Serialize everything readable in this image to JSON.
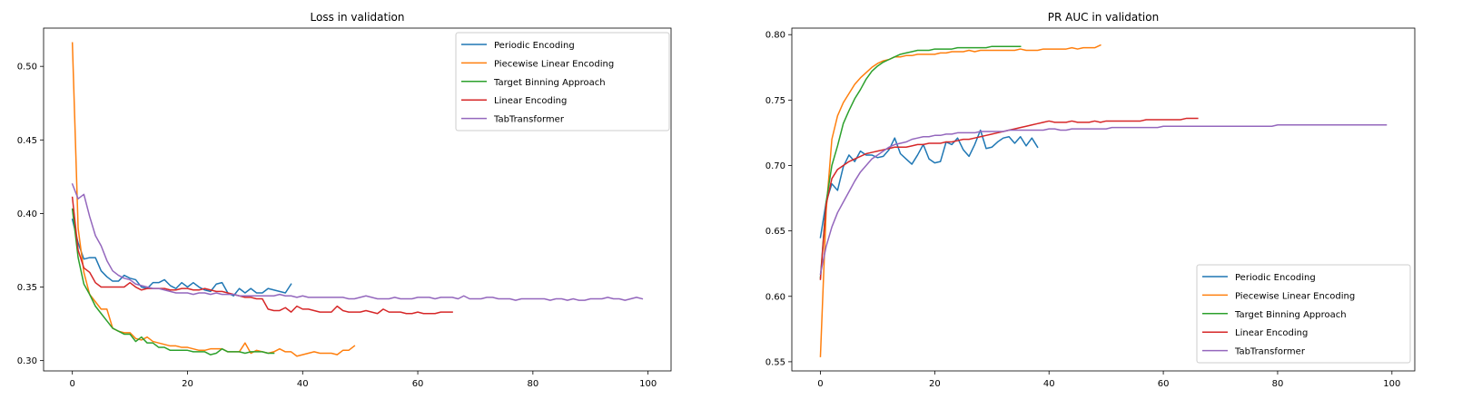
{
  "chart_data": [
    {
      "type": "line",
      "title": "Loss in validation",
      "xlabel": "",
      "ylabel": "",
      "xlim": [
        -5,
        104
      ],
      "ylim": [
        0.293,
        0.526
      ],
      "xticks": [
        0,
        20,
        40,
        60,
        80,
        100
      ],
      "yticks": [
        0.3,
        0.35,
        0.4,
        0.45,
        0.5
      ],
      "ytick_labels": [
        "0.30",
        "0.35",
        "0.40",
        "0.45",
        "0.50"
      ],
      "grid": false,
      "legend_position": "upper-right",
      "series": [
        {
          "name": "Periodic Encoding",
          "color": "#1f77b4",
          "values": [
            0.396,
            0.38,
            0.369,
            0.37,
            0.37,
            0.361,
            0.357,
            0.354,
            0.354,
            0.358,
            0.356,
            0.355,
            0.35,
            0.349,
            0.353,
            0.353,
            0.355,
            0.351,
            0.349,
            0.353,
            0.35,
            0.353,
            0.35,
            0.348,
            0.347,
            0.352,
            0.353,
            0.346,
            0.344,
            0.349,
            0.346,
            0.349,
            0.346,
            0.346,
            0.349,
            0.348,
            0.347,
            0.346,
            0.352
          ]
        },
        {
          "name": "Piecewise Linear Encoding",
          "color": "#ff7f0e",
          "values": [
            0.516,
            0.39,
            0.36,
            0.345,
            0.34,
            0.335,
            0.335,
            0.322,
            0.32,
            0.319,
            0.319,
            0.315,
            0.314,
            0.316,
            0.313,
            0.312,
            0.311,
            0.31,
            0.31,
            0.309,
            0.309,
            0.308,
            0.307,
            0.307,
            0.308,
            0.308,
            0.308,
            0.306,
            0.306,
            0.306,
            0.312,
            0.305,
            0.307,
            0.306,
            0.305,
            0.306,
            0.308,
            0.306,
            0.306,
            0.303,
            0.304,
            0.305,
            0.306,
            0.305,
            0.305,
            0.305,
            0.304,
            0.307,
            0.307,
            0.31
          ]
        },
        {
          "name": "Target Binning Approach",
          "color": "#2ca02c",
          "values": [
            0.403,
            0.37,
            0.352,
            0.345,
            0.337,
            0.332,
            0.327,
            0.322,
            0.32,
            0.318,
            0.318,
            0.313,
            0.316,
            0.312,
            0.312,
            0.309,
            0.309,
            0.307,
            0.307,
            0.307,
            0.307,
            0.306,
            0.306,
            0.306,
            0.304,
            0.305,
            0.308,
            0.306,
            0.306,
            0.306,
            0.305,
            0.306,
            0.306,
            0.306,
            0.305,
            0.305
          ]
        },
        {
          "name": "Linear Encoding",
          "color": "#d62728",
          "values": [
            0.411,
            0.375,
            0.363,
            0.36,
            0.353,
            0.35,
            0.35,
            0.35,
            0.35,
            0.35,
            0.353,
            0.35,
            0.348,
            0.349,
            0.349,
            0.349,
            0.349,
            0.348,
            0.348,
            0.349,
            0.349,
            0.348,
            0.348,
            0.349,
            0.348,
            0.347,
            0.347,
            0.346,
            0.345,
            0.344,
            0.343,
            0.343,
            0.342,
            0.342,
            0.335,
            0.334,
            0.334,
            0.336,
            0.333,
            0.337,
            0.335,
            0.335,
            0.334,
            0.333,
            0.333,
            0.333,
            0.337,
            0.334,
            0.333,
            0.333,
            0.333,
            0.334,
            0.333,
            0.332,
            0.335,
            0.333,
            0.333,
            0.333,
            0.332,
            0.332,
            0.333,
            0.332,
            0.332,
            0.332,
            0.333,
            0.333,
            0.333
          ]
        },
        {
          "name": "TabTransformer",
          "color": "#9467bd",
          "values": [
            0.42,
            0.41,
            0.413,
            0.398,
            0.385,
            0.378,
            0.368,
            0.361,
            0.358,
            0.356,
            0.355,
            0.352,
            0.351,
            0.35,
            0.349,
            0.349,
            0.348,
            0.347,
            0.346,
            0.346,
            0.346,
            0.345,
            0.346,
            0.346,
            0.345,
            0.346,
            0.345,
            0.345,
            0.345,
            0.344,
            0.344,
            0.344,
            0.344,
            0.344,
            0.344,
            0.344,
            0.345,
            0.344,
            0.344,
            0.343,
            0.344,
            0.343,
            0.343,
            0.343,
            0.343,
            0.343,
            0.343,
            0.343,
            0.342,
            0.342,
            0.343,
            0.344,
            0.343,
            0.342,
            0.342,
            0.342,
            0.343,
            0.342,
            0.342,
            0.342,
            0.343,
            0.343,
            0.343,
            0.342,
            0.343,
            0.343,
            0.343,
            0.342,
            0.344,
            0.342,
            0.342,
            0.342,
            0.343,
            0.343,
            0.342,
            0.342,
            0.342,
            0.341,
            0.342,
            0.342,
            0.342,
            0.342,
            0.342,
            0.341,
            0.342,
            0.342,
            0.341,
            0.342,
            0.341,
            0.341,
            0.342,
            0.342,
            0.342,
            0.343,
            0.342,
            0.342,
            0.341,
            0.342,
            0.343,
            0.342
          ]
        }
      ]
    },
    {
      "type": "line",
      "title": "PR AUC in validation",
      "xlabel": "",
      "ylabel": "",
      "xlim": [
        -5,
        104
      ],
      "ylim": [
        0.543,
        0.805
      ],
      "xticks": [
        0,
        20,
        40,
        60,
        80,
        100
      ],
      "yticks": [
        0.55,
        0.6,
        0.65,
        0.7,
        0.75,
        0.8
      ],
      "ytick_labels": [
        "0.55",
        "0.60",
        "0.65",
        "0.70",
        "0.75",
        "0.80"
      ],
      "grid": false,
      "legend_position": "lower-right",
      "series": [
        {
          "name": "Periodic Encoding",
          "color": "#1f77b4",
          "values": [
            0.645,
            0.672,
            0.686,
            0.681,
            0.699,
            0.708,
            0.703,
            0.711,
            0.708,
            0.708,
            0.706,
            0.707,
            0.712,
            0.721,
            0.709,
            0.705,
            0.701,
            0.708,
            0.716,
            0.705,
            0.702,
            0.703,
            0.718,
            0.716,
            0.721,
            0.712,
            0.707,
            0.716,
            0.727,
            0.713,
            0.714,
            0.718,
            0.721,
            0.722,
            0.717,
            0.722,
            0.715,
            0.721,
            0.714
          ]
        },
        {
          "name": "Piecewise Linear Encoding",
          "color": "#ff7f0e",
          "values": [
            0.554,
            0.665,
            0.72,
            0.738,
            0.748,
            0.755,
            0.762,
            0.767,
            0.771,
            0.775,
            0.778,
            0.78,
            0.781,
            0.783,
            0.783,
            0.784,
            0.784,
            0.785,
            0.785,
            0.785,
            0.785,
            0.786,
            0.786,
            0.787,
            0.787,
            0.787,
            0.788,
            0.787,
            0.788,
            0.788,
            0.788,
            0.788,
            0.788,
            0.788,
            0.788,
            0.789,
            0.788,
            0.788,
            0.788,
            0.789,
            0.789,
            0.789,
            0.789,
            0.789,
            0.79,
            0.789,
            0.79,
            0.79,
            0.79,
            0.792
          ]
        },
        {
          "name": "Target Binning Approach",
          "color": "#2ca02c",
          "values": [
            0.614,
            0.672,
            0.7,
            0.715,
            0.732,
            0.742,
            0.751,
            0.758,
            0.766,
            0.772,
            0.776,
            0.779,
            0.781,
            0.783,
            0.785,
            0.786,
            0.787,
            0.788,
            0.788,
            0.788,
            0.789,
            0.789,
            0.789,
            0.789,
            0.79,
            0.79,
            0.79,
            0.79,
            0.79,
            0.79,
            0.791,
            0.791,
            0.791,
            0.791,
            0.791,
            0.791
          ]
        },
        {
          "name": "Linear Encoding",
          "color": "#d62728",
          "values": [
            0.613,
            0.67,
            0.69,
            0.697,
            0.7,
            0.703,
            0.705,
            0.707,
            0.709,
            0.71,
            0.711,
            0.712,
            0.713,
            0.714,
            0.714,
            0.714,
            0.715,
            0.716,
            0.716,
            0.717,
            0.717,
            0.717,
            0.718,
            0.718,
            0.719,
            0.72,
            0.72,
            0.721,
            0.722,
            0.723,
            0.724,
            0.725,
            0.726,
            0.727,
            0.728,
            0.729,
            0.73,
            0.731,
            0.732,
            0.733,
            0.734,
            0.733,
            0.733,
            0.733,
            0.734,
            0.733,
            0.733,
            0.733,
            0.734,
            0.733,
            0.734,
            0.734,
            0.734,
            0.734,
            0.734,
            0.734,
            0.734,
            0.735,
            0.735,
            0.735,
            0.735,
            0.735,
            0.735,
            0.735,
            0.736,
            0.736,
            0.736
          ]
        },
        {
          "name": "TabTransformer",
          "color": "#9467bd",
          "values": [
            0.617,
            0.638,
            0.653,
            0.664,
            0.672,
            0.68,
            0.688,
            0.695,
            0.7,
            0.705,
            0.708,
            0.711,
            0.714,
            0.716,
            0.717,
            0.718,
            0.72,
            0.721,
            0.722,
            0.722,
            0.723,
            0.723,
            0.724,
            0.724,
            0.725,
            0.725,
            0.725,
            0.725,
            0.726,
            0.726,
            0.726,
            0.726,
            0.726,
            0.727,
            0.727,
            0.727,
            0.727,
            0.727,
            0.727,
            0.727,
            0.728,
            0.728,
            0.727,
            0.727,
            0.728,
            0.728,
            0.728,
            0.728,
            0.728,
            0.728,
            0.728,
            0.729,
            0.729,
            0.729,
            0.729,
            0.729,
            0.729,
            0.729,
            0.729,
            0.729,
            0.73,
            0.73,
            0.73,
            0.73,
            0.73,
            0.73,
            0.73,
            0.73,
            0.73,
            0.73,
            0.73,
            0.73,
            0.73,
            0.73,
            0.73,
            0.73,
            0.73,
            0.73,
            0.73,
            0.73,
            0.731,
            0.731,
            0.731,
            0.731,
            0.731,
            0.731,
            0.731,
            0.731,
            0.731,
            0.731,
            0.731,
            0.731,
            0.731,
            0.731,
            0.731,
            0.731,
            0.731,
            0.731,
            0.731,
            0.731
          ]
        }
      ]
    }
  ]
}
